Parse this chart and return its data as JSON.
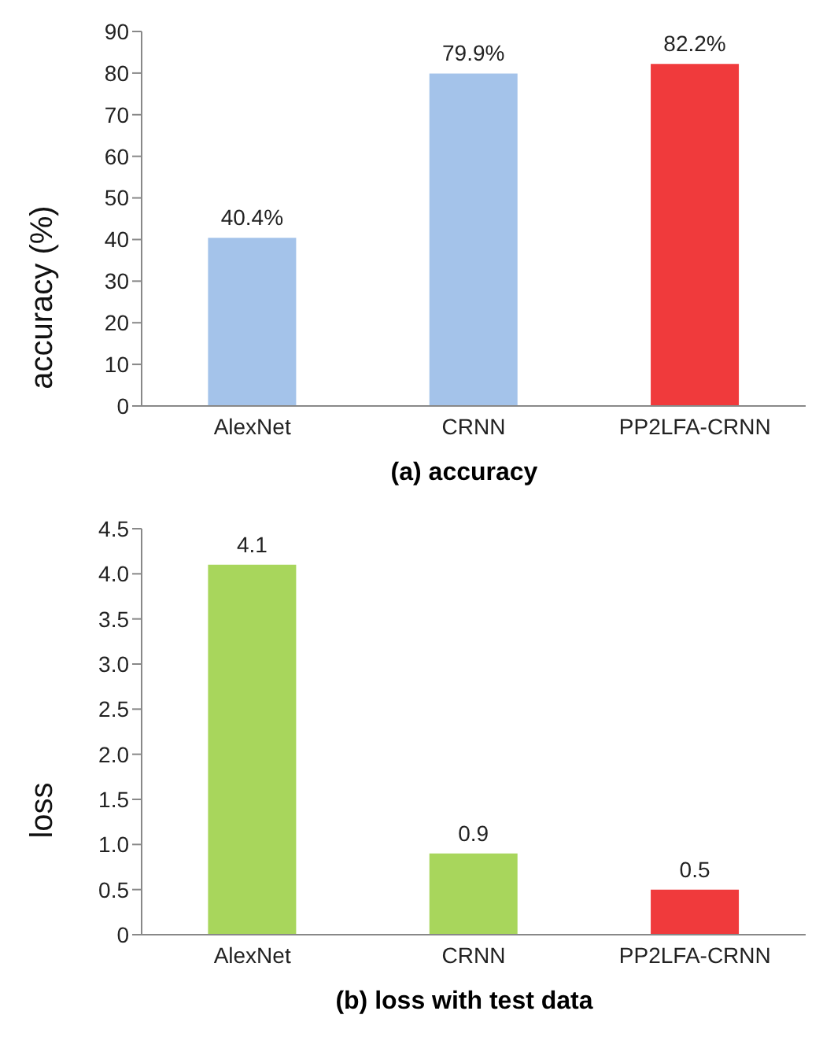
{
  "chart_data": [
    {
      "type": "bar",
      "title": "(a) accuracy",
      "ylabel": "accuracy (%)",
      "categories": [
        "AlexNet",
        "CRNN",
        "PP2LFA-CRNN"
      ],
      "values": [
        40.4,
        79.9,
        82.2
      ],
      "colors": [
        "#a4c3ea",
        "#a4c3ea",
        "#f03a3c"
      ],
      "value_labels": [
        "40.4%",
        "79.9%",
        "82.2%"
      ],
      "ylim": [
        0,
        90
      ],
      "yticks": [
        0,
        10,
        20,
        30,
        40,
        50,
        60,
        70,
        80,
        90
      ],
      "grid": false,
      "legend": false
    },
    {
      "type": "bar",
      "title": "(b) loss with test data",
      "ylabel": "loss",
      "categories": [
        "AlexNet",
        "CRNN",
        "PP2LFA-CRNN"
      ],
      "values": [
        4.1,
        0.9,
        0.5
      ],
      "colors": [
        "#a8d65c",
        "#a8d65c",
        "#f03a3c"
      ],
      "data_labels": true,
      "ylim": [
        0,
        4.5
      ],
      "yticks": [
        0,
        {
          "value": 0.5,
          "label": "0.5"
        },
        {
          "value": 1,
          "label": "1.0"
        },
        {
          "value": 1.5,
          "label": "1.5"
        },
        {
          "value": 2,
          "label": "2.0"
        },
        {
          "value": 2.5,
          "label": "2.5"
        },
        {
          "value": 3,
          "label": "3.0"
        },
        {
          "value": 3.5,
          "label": "3.5"
        },
        {
          "value": 4,
          "label": "4.0"
        },
        {
          "value": 4.5,
          "label": "4.5"
        }
      ],
      "grid": false,
      "legend": false
    }
  ]
}
